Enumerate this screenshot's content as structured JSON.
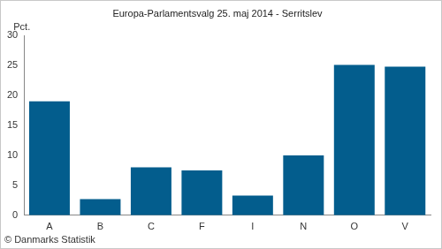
{
  "chart_data": {
    "type": "bar",
    "title": "Europa-Parlamentsvalg 25. maj 2014 - Serritslev",
    "y_label": "Pct.",
    "annotations": [
      "© Danmarks Statistik"
    ],
    "categories": [
      "A",
      "B",
      "C",
      "F",
      "I",
      "N",
      "O",
      "V"
    ],
    "values": [
      19.0,
      2.7,
      8.0,
      7.5,
      3.3,
      10.0,
      25.1,
      24.8
    ],
    "color": "#035d8d",
    "ylim": [
      0,
      30
    ],
    "yticks": [
      0,
      5,
      10,
      15,
      20,
      25,
      30
    ],
    "grid": false
  }
}
